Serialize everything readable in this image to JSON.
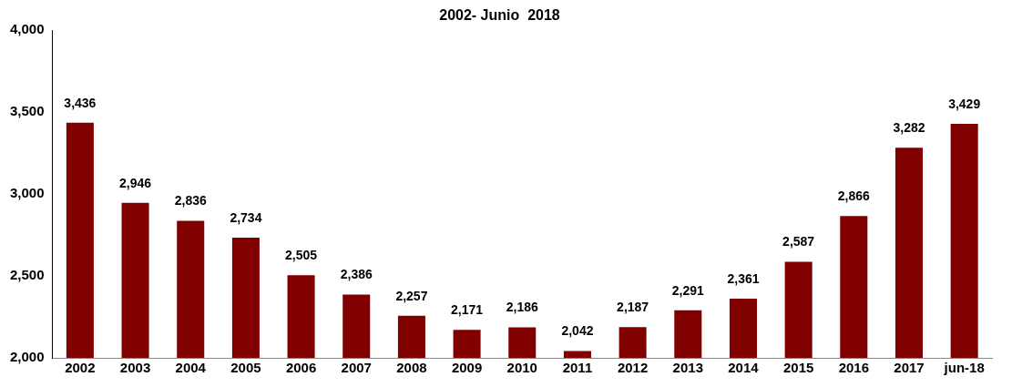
{
  "chart_data": {
    "type": "bar",
    "title": "2002- Junio  2018",
    "categories": [
      "2002",
      "2003",
      "2004",
      "2005",
      "2006",
      "2007",
      "2008",
      "2009",
      "2010",
      "2011",
      "2012",
      "2013",
      "2014",
      "2015",
      "2016",
      "2017",
      "jun-18"
    ],
    "values": [
      3436,
      2946,
      2836,
      2734,
      2505,
      2386,
      2257,
      2171,
      2186,
      2042,
      2187,
      2291,
      2361,
      2587,
      2866,
      3282,
      3429
    ],
    "value_labels": [
      "3,436",
      "2,946",
      "2,836",
      "2,734",
      "2,505",
      "2,386",
      "2,257",
      "2,171",
      "2,186",
      "2,042",
      "2,187",
      "2,291",
      "2,361",
      "2,587",
      "2,866",
      "3,282",
      "3,429"
    ],
    "color": "#800000",
    "ylim": [
      2000,
      4000
    ],
    "yticks": [
      {
        "value": 2000,
        "label": "2,000"
      },
      {
        "value": 2500,
        "label": "2,500"
      },
      {
        "value": 3000,
        "label": "3,000"
      },
      {
        "value": 3500,
        "label": "3,500"
      },
      {
        "value": 4000,
        "label": "4,000"
      }
    ],
    "grid": false,
    "legend": false
  }
}
